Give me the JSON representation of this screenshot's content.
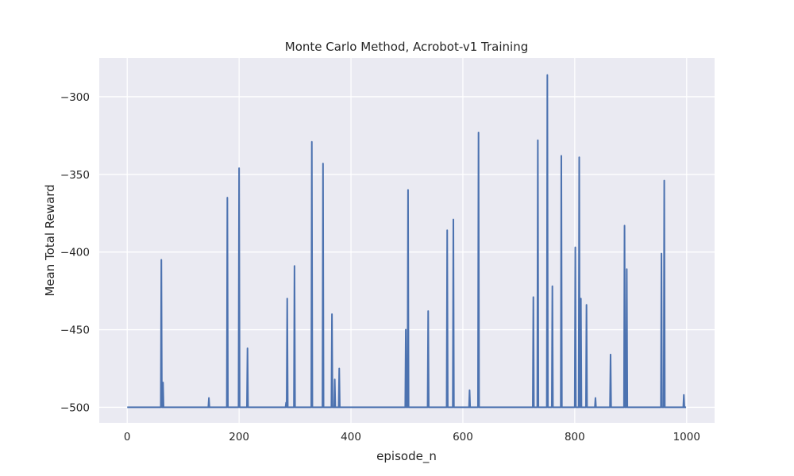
{
  "chart_data": {
    "type": "line",
    "title": "Monte Carlo Method, Acrobot-v1 Training",
    "xlabel": "episode_n",
    "ylabel": "Mean Total Reward",
    "xlim": [
      -50,
      1050
    ],
    "ylim": [
      -510,
      -275
    ],
    "xticks": [
      0,
      200,
      400,
      600,
      800,
      1000
    ],
    "yticks": [
      -500,
      -450,
      -400,
      -350,
      -300
    ],
    "xtick_labels": [
      "0",
      "200",
      "400",
      "600",
      "800",
      "1000"
    ],
    "ytick_labels": [
      "−500",
      "−450",
      "−400",
      "−350",
      "−300"
    ],
    "grid": true,
    "baseline": -500,
    "series": [
      {
        "color": "#4c72b0",
        "spikes": [
          {
            "x": 61,
            "y": -405
          },
          {
            "x": 64,
            "y": -484
          },
          {
            "x": 146,
            "y": -494
          },
          {
            "x": 179,
            "y": -365
          },
          {
            "x": 200,
            "y": -346
          },
          {
            "x": 215,
            "y": -462
          },
          {
            "x": 284,
            "y": -497
          },
          {
            "x": 286,
            "y": -430
          },
          {
            "x": 299,
            "y": -409
          },
          {
            "x": 330,
            "y": -329
          },
          {
            "x": 350,
            "y": -343
          },
          {
            "x": 366,
            "y": -440
          },
          {
            "x": 371,
            "y": -482
          },
          {
            "x": 379,
            "y": -475
          },
          {
            "x": 498,
            "y": -450
          },
          {
            "x": 502,
            "y": -360
          },
          {
            "x": 538,
            "y": -438
          },
          {
            "x": 572,
            "y": -386
          },
          {
            "x": 583,
            "y": -379
          },
          {
            "x": 612,
            "y": -489
          },
          {
            "x": 628,
            "y": -323
          },
          {
            "x": 726,
            "y": -429
          },
          {
            "x": 734,
            "y": -328
          },
          {
            "x": 751,
            "y": -286
          },
          {
            "x": 760,
            "y": -422
          },
          {
            "x": 776,
            "y": -338
          },
          {
            "x": 801,
            "y": -397
          },
          {
            "x": 808,
            "y": -339
          },
          {
            "x": 811,
            "y": -430
          },
          {
            "x": 821,
            "y": -434
          },
          {
            "x": 837,
            "y": -494
          },
          {
            "x": 864,
            "y": -466
          },
          {
            "x": 889,
            "y": -383
          },
          {
            "x": 893,
            "y": -411
          },
          {
            "x": 955,
            "y": -401
          },
          {
            "x": 960,
            "y": -354
          },
          {
            "x": 995,
            "y": -492
          }
        ],
        "x_range": [
          0,
          999
        ]
      }
    ]
  }
}
